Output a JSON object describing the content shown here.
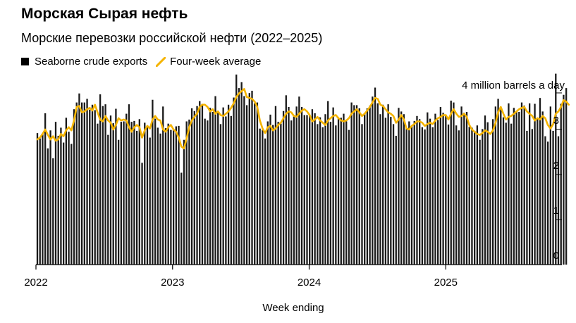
{
  "header": {
    "title": "Морская Сырая нефть",
    "subtitle": "Морские перевозки российской нефти (2022–2025)"
  },
  "legend": {
    "exports_label": "Seaborne crude exports",
    "average_label": "Four-week average"
  },
  "colors": {
    "bars": "#1a1a1a",
    "average": "#f5b400",
    "axis": "#000000"
  },
  "chart_data": {
    "type": "bar",
    "title": "Морская Сырая нефть",
    "subtitle": "Морские перевозки российской нефти (2022–2025)",
    "xlabel": "Week ending",
    "ylabel": "4 million barrels a day",
    "ylim": [
      0,
      4
    ],
    "yticks": [
      0,
      1,
      2,
      3
    ],
    "ytick_labels": [
      "0",
      "1",
      "2",
      "3"
    ],
    "x_range_years": [
      2022,
      2025.85
    ],
    "xtick_labels": [
      "2022",
      "2023",
      "2024",
      "2025"
    ],
    "xtick_values": [
      2022,
      2023,
      2024,
      2025
    ],
    "series": [
      {
        "name": "Seaborne crude exports",
        "kind": "bar",
        "x_start": 2022.0,
        "x_step_weeks": 1,
        "values": [
          2.92,
          2.8,
          2.91,
          3.36,
          2.58,
          2.98,
          2.36,
          3.17,
          2.86,
          3.04,
          2.71,
          3.26,
          2.95,
          2.68,
          3.45,
          3.6,
          3.8,
          3.6,
          3.6,
          3.68,
          3.44,
          3.55,
          3.43,
          3.13,
          3.78,
          3.52,
          3.56,
          2.88,
          3.31,
          3.14,
          3.46,
          2.77,
          3.17,
          3.18,
          3.35,
          3.56,
          3.17,
          3.19,
          2.97,
          3.23,
          2.26,
          3.15,
          3.09,
          2.82,
          3.66,
          3.24,
          3.04,
          2.91,
          3.51,
          3.03,
          3.13,
          2.99,
          3.0,
          3.07,
          3.08,
          2.04,
          2.77,
          3.18,
          3.22,
          3.47,
          3.41,
          3.52,
          3.63,
          3.57,
          3.24,
          3.2,
          3.48,
          3.39,
          3.74,
          3.39,
          3.12,
          3.49,
          3.29,
          3.55,
          3.3,
          3.71,
          4.22,
          3.92,
          4.05,
          3.74,
          3.54,
          3.81,
          3.86,
          3.58,
          3.6,
          3.02,
          2.99,
          2.8,
          3.18,
          3.33,
          3.1,
          3.52,
          3.17,
          3.13,
          3.41,
          3.76,
          3.5,
          3.2,
          3.32,
          3.51,
          3.73,
          3.5,
          3.32,
          3.32,
          3.32,
          3.45,
          3.36,
          3.12,
          3.27,
          3.05,
          3.34,
          3.63,
          3.17,
          3.49,
          3.09,
          3.25,
          3.26,
          3.35,
          3.18,
          2.99,
          3.6,
          3.54,
          3.54,
          3.47,
          3.12,
          3.34,
          3.47,
          3.53,
          3.73,
          3.93,
          3.58,
          3.34,
          3.55,
          3.26,
          3.56,
          3.28,
          3.12,
          2.86,
          3.48,
          3.4,
          3.34,
          3.03,
          3.18,
          3.07,
          3.19,
          3.3,
          3.23,
          3.05,
          3.0,
          3.38,
          3.24,
          3.05,
          3.35,
          3.21,
          3.5,
          3.37,
          3.31,
          3.11,
          3.64,
          3.6,
          3.09,
          2.98,
          3.51,
          3.37,
          3.39,
          3.06,
          3.04,
          2.97,
          3.09,
          2.77,
          3.01,
          3.31,
          3.16,
          2.33,
          3.23,
          3.51,
          3.68,
          3.5,
          3.27,
          3.15,
          3.58,
          3.13,
          3.48,
          3.41,
          3.39,
          3.6,
          3.53,
          2.97,
          3.58,
          3.01,
          3.57,
          3.23,
          3.7,
          3.4,
          2.85,
          2.73,
          3.51,
          2.97,
          4.24,
          2.85,
          3.57,
          3.77,
          3.92
        ]
      },
      {
        "name": "Four-week average",
        "kind": "line",
        "x_start": 2022.0,
        "x_step_weeks": 1,
        "values": [
          2.78,
          2.82,
          2.9,
          3.0,
          2.88,
          2.78,
          2.85,
          2.75,
          2.78,
          2.9,
          2.85,
          2.98,
          3.05,
          2.98,
          3.2,
          3.5,
          3.52,
          3.38,
          3.4,
          3.45,
          3.48,
          3.42,
          3.55,
          3.38,
          3.22,
          3.18,
          3.3,
          3.2,
          3.15,
          3.0,
          3.1,
          3.25,
          3.2,
          3.22,
          3.2,
          3.05,
          2.95,
          3.05,
          3.1,
          3.05,
          2.82,
          2.98,
          3.08,
          3.02,
          3.22,
          3.3,
          3.22,
          3.2,
          3.0,
          2.95,
          3.05,
          3.1,
          3.0,
          2.95,
          2.82,
          2.62,
          2.58,
          2.8,
          3.05,
          3.2,
          3.28,
          3.35,
          3.5,
          3.55,
          3.55,
          3.5,
          3.4,
          3.45,
          3.35,
          3.4,
          3.32,
          3.3,
          3.35,
          3.4,
          3.48,
          3.58,
          3.72,
          3.8,
          3.85,
          3.9,
          3.72,
          3.7,
          3.68,
          3.62,
          3.5,
          3.2,
          3.02,
          2.92,
          3.05,
          3.08,
          2.98,
          3.02,
          3.1,
          3.15,
          3.25,
          3.35,
          3.4,
          3.38,
          3.3,
          3.28,
          3.35,
          3.42,
          3.45,
          3.4,
          3.32,
          3.18,
          3.22,
          3.28,
          3.2,
          3.15,
          3.1,
          3.2,
          3.25,
          3.3,
          3.32,
          3.25,
          3.2,
          3.18,
          3.2,
          3.25,
          3.35,
          3.4,
          3.45,
          3.38,
          3.3,
          3.35,
          3.42,
          3.5,
          3.6,
          3.7,
          3.68,
          3.55,
          3.52,
          3.45,
          3.38,
          3.35,
          3.3,
          3.15,
          3.22,
          3.32,
          3.22,
          3.02,
          3.0,
          3.08,
          3.12,
          3.18,
          3.18,
          3.15,
          3.08,
          3.12,
          3.15,
          3.12,
          3.2,
          3.25,
          3.28,
          3.32,
          3.32,
          3.22,
          3.35,
          3.45,
          3.35,
          3.28,
          3.3,
          3.35,
          3.28,
          3.1,
          3.0,
          2.95,
          2.9,
          2.88,
          2.92,
          2.98,
          2.95,
          2.9,
          2.98,
          3.15,
          3.38,
          3.5,
          3.35,
          3.22,
          3.28,
          3.3,
          3.35,
          3.4,
          3.45,
          3.48,
          3.5,
          3.4,
          3.35,
          3.3,
          3.2,
          3.25,
          3.22,
          3.3,
          3.25,
          3.1,
          3.02,
          3.12,
          3.35,
          3.4,
          3.5,
          3.65,
          3.62,
          3.55
        ]
      }
    ],
    "annotations": []
  }
}
